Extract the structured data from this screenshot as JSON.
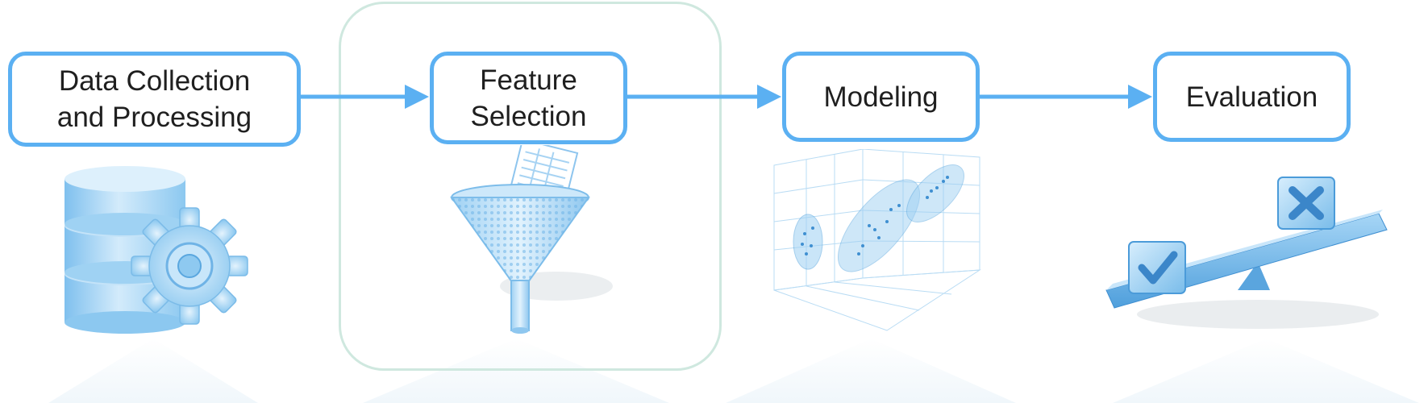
{
  "steps": [
    {
      "label": "Data Collection\nand Processing",
      "icon": "database-gear-icon"
    },
    {
      "label": "Feature\nSelection",
      "icon": "funnel-filter-icon"
    },
    {
      "label": "Modeling",
      "icon": "3d-scatter-plot-icon"
    },
    {
      "label": "Evaluation",
      "icon": "balance-seesaw-check-cross-icon"
    }
  ],
  "highlighted_step": "Feature\nSelection",
  "colors": {
    "box_border": "#5bb0f2",
    "arrow": "#5bb0f2",
    "highlight_border": "#cfe8df",
    "icon_fill": "#a9d6f5",
    "text": "#1f1f1f"
  }
}
